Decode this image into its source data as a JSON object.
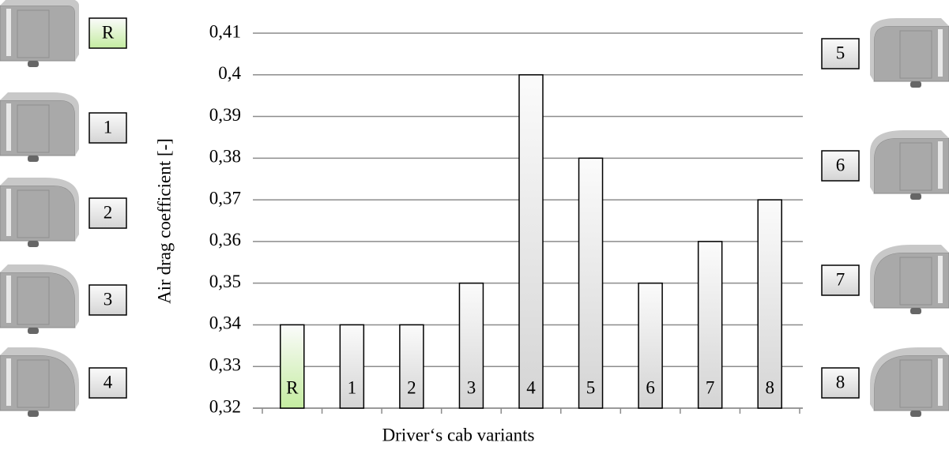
{
  "chart_data": {
    "type": "bar",
    "y_label": "Air drag coefficient  [-]",
    "x_label": "Driver‘s cab variants",
    "categories": [
      "R",
      "1",
      "2",
      "3",
      "4",
      "5",
      "6",
      "7",
      "8"
    ],
    "values": [
      0.34,
      0.34,
      0.34,
      0.35,
      0.4,
      0.38,
      0.35,
      0.36,
      0.37
    ],
    "colors": [
      "#c4eca0",
      "#d4d4d4",
      "#d4d4d4",
      "#d4d4d4",
      "#d4d4d4",
      "#d4d4d4",
      "#d4d4d4",
      "#d4d4d4",
      "#d4d4d4"
    ],
    "ylim": [
      0.32,
      0.41
    ],
    "yticks": [
      {
        "value": 0.32,
        "label": "0,32"
      },
      {
        "value": 0.33,
        "label": "0,33"
      },
      {
        "value": 0.34,
        "label": "0,34"
      },
      {
        "value": 0.35,
        "label": "0,35"
      },
      {
        "value": 0.36,
        "label": "0,36"
      },
      {
        "value": 0.37,
        "label": "0,37"
      },
      {
        "value": 0.38,
        "label": "0,38"
      },
      {
        "value": 0.39,
        "label": "0,39"
      },
      {
        "value": 0.4,
        "label": "0,4"
      },
      {
        "value": 0.41,
        "label": "0,41"
      }
    ],
    "grid": true
  }
}
